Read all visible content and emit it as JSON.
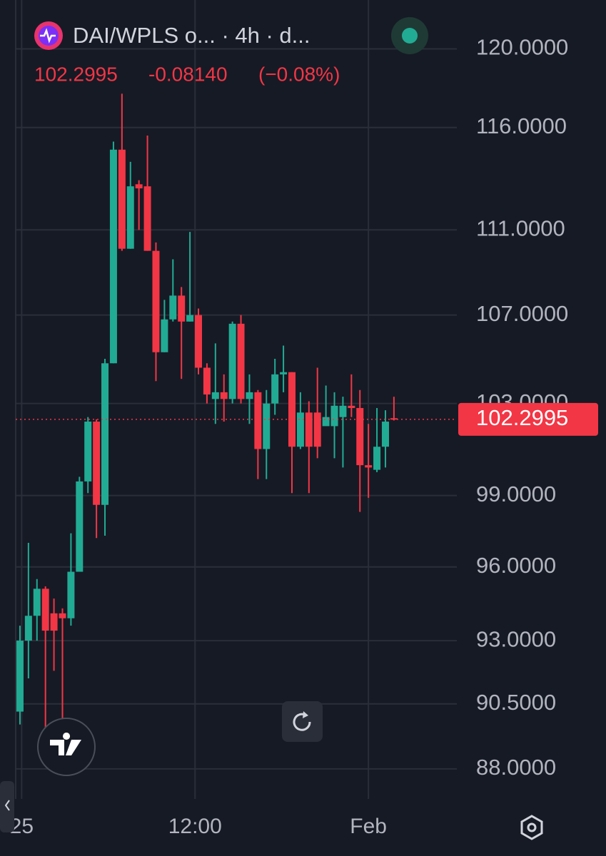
{
  "chart_data": {
    "type": "candlestick",
    "title": "DAI/WPLS o... · 4h · d...",
    "last_price": 102.2995,
    "change": {
      "value": -0.0814,
      "label": "-0.08140"
    },
    "change_percent": {
      "value": -0.08,
      "label": "(−0.08%)"
    },
    "up_color": "#22ab94",
    "down_color": "#f23645",
    "log_scale": true,
    "grid": true,
    "x": [
      0,
      1,
      2,
      3,
      4,
      5,
      6,
      7,
      8,
      9,
      10,
      11,
      12,
      13,
      14,
      15,
      16,
      17,
      18,
      19,
      20,
      21,
      22,
      23,
      24,
      25,
      26,
      27,
      28,
      29,
      30,
      31,
      32,
      33,
      34,
      35,
      36,
      37,
      38,
      39,
      40,
      41,
      42,
      43,
      44
    ],
    "open": [
      90.2,
      93.0,
      94.0,
      95.1,
      94.1,
      94.1,
      93.9,
      95.8,
      99.6,
      102.2,
      98.6,
      104.8,
      114.9,
      110.1,
      113.2,
      113.1,
      110.0,
      105.3,
      106.8,
      107.9,
      106.7,
      107.0,
      104.6,
      103.2,
      103.5,
      103.2,
      106.6,
      103.2,
      103.5,
      101.0,
      103.0,
      104.3,
      104.4,
      101.1,
      102.6,
      102.6,
      102.0,
      102.0,
      102.4,
      102.9,
      102.8,
      100.3,
      100.1,
      101.1,
      102.35
    ],
    "high": [
      93.6,
      97.0,
      95.5,
      95.2,
      94.7,
      94.3,
      97.4,
      99.8,
      102.4,
      102.3,
      105.0,
      115.3,
      117.7,
      114.3,
      113.4,
      115.6,
      110.4,
      107.7,
      109.6,
      108.3,
      110.9,
      107.3,
      104.8,
      105.7,
      104.3,
      106.7,
      107.0,
      104.3,
      103.6,
      103.6,
      105.0,
      105.6,
      104.4,
      103.5,
      103.1,
      104.6,
      103.8,
      103.5,
      103.3,
      104.3,
      103.6,
      102.1,
      102.8,
      102.7,
      103.3
    ],
    "low": [
      89.7,
      91.5,
      93.0,
      89.5,
      91.8,
      89.9,
      93.6,
      95.8,
      99.1,
      97.2,
      97.3,
      104.8,
      110.0,
      110.1,
      111.0,
      110.0,
      104.0,
      105.3,
      106.7,
      104.1,
      106.7,
      104.3,
      103.0,
      102.1,
      102.2,
      103.0,
      103.0,
      102.1,
      99.7,
      99.7,
      102.5,
      103.5,
      99.1,
      101.0,
      99.1,
      100.6,
      102.1,
      100.6,
      100.2,
      102.4,
      98.3,
      98.9,
      100.0,
      100.2,
      102.25
    ],
    "close": [
      93.0,
      94.0,
      95.1,
      93.4,
      93.4,
      93.9,
      95.8,
      99.6,
      102.2,
      98.6,
      104.8,
      114.9,
      110.1,
      113.1,
      113.0,
      110.0,
      105.3,
      106.8,
      107.9,
      106.7,
      107.0,
      104.6,
      103.4,
      103.5,
      103.2,
      106.6,
      103.2,
      103.5,
      101.0,
      103.0,
      104.3,
      104.4,
      101.1,
      102.6,
      101.1,
      101.1,
      102.4,
      102.9,
      102.9,
      102.8,
      100.3,
      100.2,
      101.1,
      102.2,
      102.2995
    ],
    "xlim": [
      -0.5,
      51.4
    ],
    "xticks": [
      {
        "value": 0.2,
        "label": "25"
      },
      {
        "value": 20.6,
        "label": "12:00"
      },
      {
        "value": 41,
        "label": "Feb"
      }
    ],
    "ylim": [
      86.87,
      122.55
    ],
    "yticks": [
      {
        "value": 120,
        "label": "120.0000"
      },
      {
        "value": 116,
        "label": "116.0000"
      },
      {
        "value": 111,
        "label": "111.0000"
      },
      {
        "value": 107,
        "label": "107.0000"
      },
      {
        "value": 103,
        "label": "103.0000"
      },
      {
        "value": 99,
        "label": "99.0000"
      },
      {
        "value": 96,
        "label": "96.0000"
      },
      {
        "value": 93,
        "label": "93.0000"
      },
      {
        "value": 90.5,
        "label": "90.5000"
      },
      {
        "value": 88,
        "label": "88.0000"
      }
    ]
  }
}
